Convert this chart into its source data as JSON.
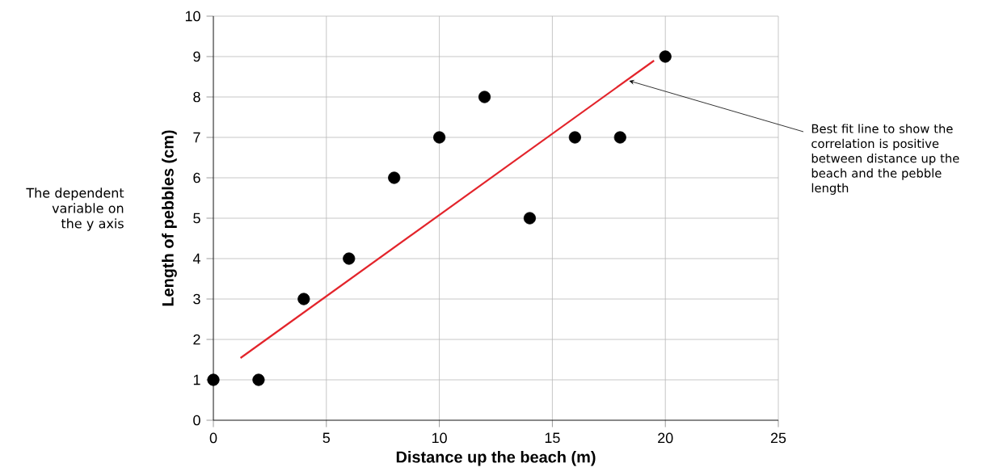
{
  "chart_data": {
    "type": "scatter",
    "xlabel": "Distance up the beach (m)",
    "ylabel": "Length of pebbles (cm)",
    "xlim": [
      0,
      25
    ],
    "ylim": [
      0,
      10
    ],
    "xticks": [
      0,
      5,
      10,
      15,
      20,
      25
    ],
    "yticks": [
      0,
      1,
      2,
      3,
      4,
      5,
      6,
      7,
      8,
      9,
      10
    ],
    "grid": true,
    "series": [
      {
        "marker": "circle",
        "color": "#000000",
        "x": [
          0,
          2,
          4,
          6,
          8,
          10,
          12,
          14,
          16,
          18,
          20
        ],
        "values": [
          1,
          1,
          3,
          4,
          6,
          7,
          8,
          5,
          7,
          7,
          9
        ]
      },
      {
        "type": "line",
        "marker": "none",
        "color": "#e3242b",
        "x": [
          1.2,
          19.5
        ],
        "values": [
          1.54,
          8.9
        ]
      }
    ],
    "annotations": [
      "The dependent variable on the y axis",
      {
        "text": "Best fit line to show the correlation is positive between distance up the beach and the pebble length",
        "x": 18.4,
        "y": 8.4
      }
    ]
  }
}
